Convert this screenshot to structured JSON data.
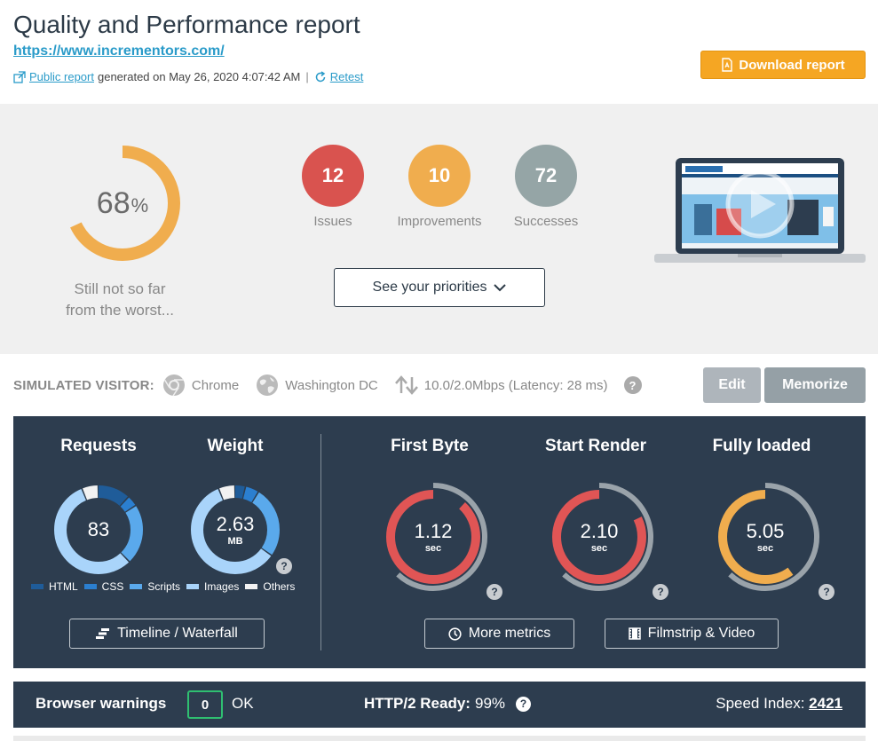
{
  "header": {
    "title": "Quality and Performance report",
    "url": "https://www.incrementors.com/",
    "public_report_label": "Public report",
    "generated_text": "generated on May 26, 2020 4:07:42 AM",
    "separator": "|",
    "retest_label": "Retest",
    "download_label": "Download report"
  },
  "score": {
    "value": "68",
    "percent_sign": "%",
    "fraction": 0.68,
    "caption_line1": "Still not so far",
    "caption_line2": "from the worst...",
    "color": "#f0ad4e"
  },
  "badges": [
    {
      "count": "12",
      "label": "Issues",
      "color": "#d9534f"
    },
    {
      "count": "10",
      "label": "Improvements",
      "color": "#f0ad4e"
    },
    {
      "count": "72",
      "label": "Successes",
      "color": "#95a5a6"
    }
  ],
  "priorities_label": "See your priorities",
  "visitor": {
    "label": "SIMULATED VISITOR:",
    "browser": "Chrome",
    "location": "Washington DC",
    "connection": "10.0/2.0Mbps (Latency: 28 ms)",
    "help": "?",
    "edit_label": "Edit",
    "memorize_label": "Memorize"
  },
  "metrics": {
    "requests_title": "Requests",
    "requests_value": "83",
    "weight_title": "Weight",
    "weight_value": "2.63",
    "weight_unit": "MB",
    "legend": [
      {
        "label": "HTML",
        "color": "#1f5c99"
      },
      {
        "label": "CSS",
        "color": "#2b7fd0"
      },
      {
        "label": "Scripts",
        "color": "#5aa9ec"
      },
      {
        "label": "Images",
        "color": "#a9d4fa"
      },
      {
        "label": "Others",
        "color": "#f2f2f2"
      }
    ],
    "requests_breakdown": [
      0.12,
      0.04,
      0.22,
      0.56,
      0.06
    ],
    "weight_breakdown": [
      0.04,
      0.05,
      0.26,
      0.59,
      0.06
    ],
    "timings": [
      {
        "title": "First Byte",
        "value": "1.12",
        "unit": "sec",
        "fraction": 0.88,
        "color": "#e05555"
      },
      {
        "title": "Start Render",
        "value": "2.10",
        "unit": "sec",
        "fraction": 0.82,
        "color": "#e05555"
      },
      {
        "title": "Fully loaded",
        "value": "5.05",
        "unit": "sec",
        "fraction": 0.6,
        "color": "#f0ad4e"
      }
    ],
    "timeline_label": "Timeline / Waterfall",
    "more_metrics_label": "More metrics",
    "filmstrip_label": "Filmstrip & Video",
    "help": "?"
  },
  "bottom": {
    "browser_warnings_label": "Browser warnings",
    "warnings_count": "0",
    "ok_label": "OK",
    "http2_label": "HTTP/2 Ready:",
    "http2_value": "99%",
    "speed_label": "Speed Index:",
    "speed_value": "2421",
    "help": "?"
  }
}
